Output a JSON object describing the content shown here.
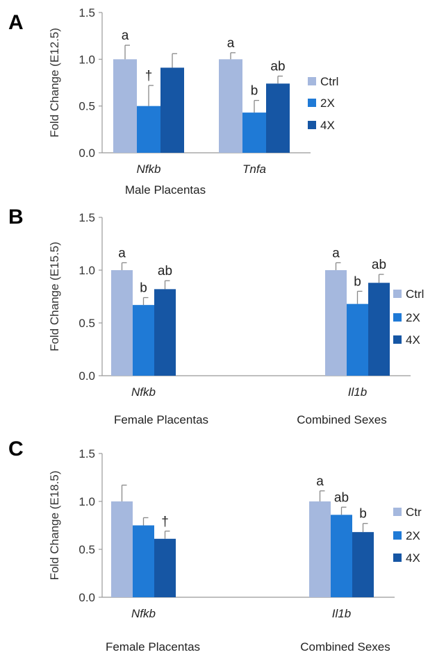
{
  "chart_data": [
    {
      "type": "bar",
      "panel": "A",
      "ylabel": "Fold Change (E12.5)",
      "ylim": [
        0,
        1.5
      ],
      "yticks": [
        "0.0",
        "0.5",
        "1.0",
        "1.5"
      ],
      "categories": [
        "Nfkb",
        "Tnfa"
      ],
      "group_labels": [
        "Male Placentas"
      ],
      "legend": [
        "Ctrl",
        "2X",
        "4X"
      ],
      "colors": [
        "#a5b8de",
        "#1f7ad6",
        "#1656a4"
      ],
      "series": [
        {
          "name": "Ctrl",
          "values": [
            1.0,
            1.0
          ],
          "errors": [
            0.15,
            0.07
          ],
          "labels": [
            "a",
            "a"
          ]
        },
        {
          "name": "2X",
          "values": [
            0.5,
            0.43
          ],
          "errors": [
            0.22,
            0.13
          ],
          "labels": [
            "†",
            "b"
          ]
        },
        {
          "name": "4X",
          "values": [
            0.91,
            0.74
          ],
          "errors": [
            0.15,
            0.08
          ],
          "labels": [
            "",
            "ab"
          ]
        }
      ]
    },
    {
      "type": "bar",
      "panel": "B",
      "ylabel": "Fold Change (E15.5)",
      "ylim": [
        0,
        1.5
      ],
      "yticks": [
        "0.0",
        "0.5",
        "1.0",
        "1.5"
      ],
      "categories": [
        "Nfkb",
        "Il1b"
      ],
      "group_labels": [
        "Female Placentas",
        "Combined Sexes"
      ],
      "legend": [
        "Ctrl",
        "2X",
        "4X"
      ],
      "colors": [
        "#a5b8de",
        "#1f7ad6",
        "#1656a4"
      ],
      "series": [
        {
          "name": "Ctrl",
          "values": [
            1.0,
            1.0
          ],
          "errors": [
            0.07,
            0.07
          ],
          "labels": [
            "a",
            "a"
          ]
        },
        {
          "name": "2X",
          "values": [
            0.67,
            0.68
          ],
          "errors": [
            0.07,
            0.12
          ],
          "labels": [
            "b",
            "b"
          ]
        },
        {
          "name": "4X",
          "values": [
            0.82,
            0.88
          ],
          "errors": [
            0.08,
            0.08
          ],
          "labels": [
            "ab",
            "ab"
          ]
        }
      ]
    },
    {
      "type": "bar",
      "panel": "C",
      "ylabel": "Fold Change (E18.5)",
      "ylim": [
        0,
        1.5
      ],
      "yticks": [
        "0.0",
        "0.5",
        "1.0",
        "1.5"
      ],
      "categories": [
        "Nfkb",
        "Il1b"
      ],
      "group_labels": [
        "Female Placentas",
        "Combined Sexes"
      ],
      "legend": [
        "Ctr",
        "2X",
        "4X"
      ],
      "colors": [
        "#a5b8de",
        "#1f7ad6",
        "#1656a4"
      ],
      "series": [
        {
          "name": "Ctr",
          "values": [
            1.0,
            1.0
          ],
          "errors": [
            0.17,
            0.11
          ],
          "labels": [
            "",
            "a"
          ]
        },
        {
          "name": "2X",
          "values": [
            0.75,
            0.86
          ],
          "errors": [
            0.08,
            0.08
          ],
          "labels": [
            "",
            "ab"
          ]
        },
        {
          "name": "4X",
          "values": [
            0.61,
            0.68
          ],
          "errors": [
            0.08,
            0.09
          ],
          "labels": [
            "†",
            "b"
          ]
        }
      ]
    }
  ]
}
